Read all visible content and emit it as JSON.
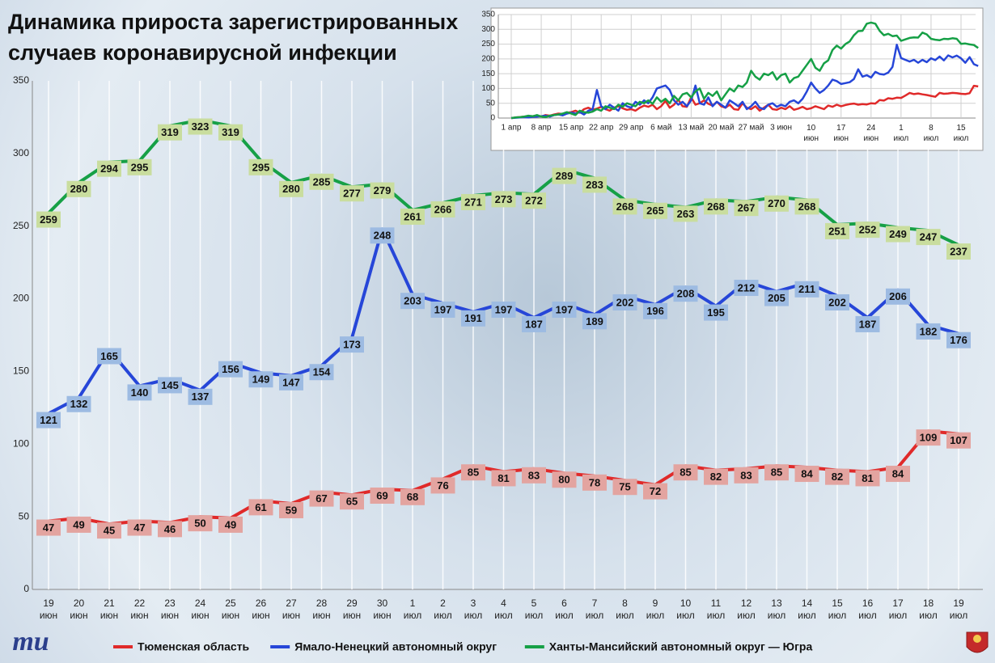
{
  "chart_data": [
    {
      "type": "line",
      "title": "Динамика прироста зарегистрированных случаев коронавирусной инфекции",
      "logo": "mu",
      "categories": [
        "19 июн",
        "20 июн",
        "21 июн",
        "22 июн",
        "23 июн",
        "24 июн",
        "25 июн",
        "26 июн",
        "27 июн",
        "28 июн",
        "29 июн",
        "30 июн",
        "1 июл",
        "2 июл",
        "3 июл",
        "4 июл",
        "5 июл",
        "6 июл",
        "7 июл",
        "8 июл",
        "9 июл",
        "10 июл",
        "11 июл",
        "12 июл",
        "13 июл",
        "14 июл",
        "15 июл",
        "16 июл",
        "17 июл",
        "18 июл",
        "19 июл"
      ],
      "ylim": [
        0,
        350
      ],
      "yticks": [
        0,
        50,
        100,
        150,
        200,
        250,
        300,
        350
      ],
      "grid": "x",
      "data_labels": true,
      "legend": "bottom",
      "series": [
        {
          "name": "Тюменская область",
          "color": "#e02a2a",
          "label_color": "#e3a4a0",
          "values": [
            47,
            49,
            45,
            47,
            46,
            50,
            49,
            61,
            59,
            67,
            65,
            69,
            68,
            76,
            85,
            81,
            83,
            80,
            78,
            75,
            72,
            85,
            82,
            83,
            85,
            84,
            82,
            81,
            84,
            109,
            107
          ]
        },
        {
          "name": "Ямало-Ненецкий автономный округ",
          "color": "#2646d8",
          "label_color": "#9dbbe2",
          "values": [
            121,
            132,
            165,
            140,
            145,
            137,
            156,
            149,
            147,
            154,
            173,
            248,
            203,
            197,
            191,
            197,
            187,
            197,
            189,
            202,
            196,
            208,
            195,
            212,
            205,
            211,
            202,
            187,
            206,
            182,
            176
          ]
        },
        {
          "name": "Ханты-Мансийский автономный округ — Югра",
          "color": "#16a046",
          "label_color": "#c9dd9e",
          "values": [
            259,
            280,
            294,
            295,
            319,
            323,
            319,
            295,
            280,
            285,
            277,
            279,
            261,
            266,
            271,
            273,
            272,
            289,
            283,
            268,
            265,
            263,
            268,
            267,
            270,
            268,
            251,
            252,
            249,
            247,
            237
          ]
        }
      ]
    },
    {
      "type": "line",
      "categories": [
        "1 апр",
        null,
        null,
        null,
        null,
        null,
        null,
        "8 апр",
        null,
        null,
        null,
        null,
        null,
        null,
        "15 апр",
        null,
        null,
        null,
        null,
        null,
        null,
        "22 апр",
        null,
        null,
        null,
        null,
        null,
        null,
        "29 апр",
        null,
        null,
        null,
        null,
        null,
        null,
        "6 май",
        null,
        null,
        null,
        null,
        null,
        null,
        "13 май",
        null,
        null,
        null,
        null,
        null,
        null,
        "20 май",
        null,
        null,
        null,
        null,
        null,
        null,
        "27 май",
        null,
        null,
        null,
        null,
        null,
        null,
        "3 июн",
        null,
        null,
        null,
        null,
        null,
        null,
        "10 июн",
        null,
        null,
        null,
        null,
        null,
        null,
        "17 июн",
        null,
        null,
        null,
        null,
        null,
        null,
        "24 июн",
        null,
        null,
        null,
        null,
        null,
        null,
        "1 июл",
        null,
        null,
        null,
        null,
        null,
        null,
        "8 июл",
        null,
        null,
        null,
        null,
        null,
        null,
        "15 июл",
        null,
        null,
        null,
        null
      ],
      "ylim": [
        0,
        350
      ],
      "yticks": [
        0,
        50,
        100,
        150,
        200,
        250,
        300,
        350
      ],
      "grid": "both",
      "data_labels": false,
      "series": [
        {
          "color": "#e02a2a",
          "values": [
            0,
            2,
            3,
            5,
            4,
            6,
            8,
            5,
            10,
            8,
            12,
            15,
            14,
            18,
            20,
            25,
            18,
            30,
            35,
            28,
            32,
            38,
            30,
            25,
            35,
            40,
            33,
            28,
            30,
            25,
            35,
            42,
            38,
            45,
            30,
            40,
            58,
            35,
            45,
            62,
            40,
            38,
            70,
            45,
            50,
            60,
            48,
            42,
            55,
            40,
            35,
            45,
            30,
            28,
            50,
            35,
            30,
            40,
            25,
            35,
            45,
            30,
            28,
            35,
            30,
            40,
            28,
            32,
            38,
            30,
            33,
            40,
            35,
            30,
            42,
            38,
            45,
            40,
            44,
            47,
            49,
            45,
            47,
            46,
            50,
            49,
            61,
            59,
            67,
            65,
            69,
            68,
            76,
            85,
            81,
            83,
            80,
            78,
            75,
            72,
            85,
            82,
            83,
            85,
            84,
            82,
            81,
            84,
            109,
            107
          ]
        },
        {
          "color": "#2646d8",
          "values": [
            0,
            1,
            2,
            3,
            2,
            4,
            5,
            6,
            8,
            5,
            10,
            12,
            9,
            15,
            18,
            15,
            20,
            12,
            25,
            30,
            95,
            40,
            30,
            45,
            35,
            25,
            50,
            40,
            35,
            55,
            45,
            60,
            50,
            70,
            100,
            105,
            110,
            95,
            60,
            45,
            55,
            40,
            60,
            110,
            50,
            45,
            70,
            40,
            55,
            45,
            35,
            60,
            50,
            40,
            55,
            30,
            40,
            55,
            35,
            30,
            45,
            50,
            38,
            45,
            40,
            55,
            60,
            50,
            65,
            90,
            120,
            100,
            85,
            95,
            110,
            130,
            125,
            115,
            118,
            121,
            132,
            165,
            140,
            145,
            137,
            156,
            149,
            147,
            154,
            173,
            248,
            203,
            197,
            191,
            197,
            187,
            197,
            189,
            202,
            196,
            208,
            195,
            212,
            205,
            211,
            202,
            187,
            206,
            182,
            176
          ]
        },
        {
          "color": "#16a046",
          "values": [
            0,
            2,
            3,
            5,
            8,
            6,
            10,
            5,
            3,
            8,
            10,
            12,
            15,
            20,
            15,
            10,
            25,
            20,
            18,
            22,
            30,
            25,
            40,
            35,
            30,
            45,
            38,
            50,
            45,
            40,
            55,
            50,
            60,
            48,
            70,
            55,
            65,
            50,
            75,
            60,
            80,
            85,
            70,
            90,
            100,
            65,
            85,
            75,
            90,
            60,
            80,
            100,
            90,
            110,
            105,
            120,
            160,
            140,
            130,
            150,
            145,
            155,
            130,
            145,
            150,
            120,
            135,
            140,
            160,
            180,
            200,
            170,
            160,
            185,
            195,
            230,
            245,
            235,
            250,
            259,
            280,
            294,
            295,
            319,
            323,
            319,
            295,
            280,
            285,
            277,
            279,
            261,
            266,
            271,
            273,
            272,
            289,
            283,
            268,
            265,
            263,
            268,
            267,
            270,
            268,
            251,
            252,
            249,
            247,
            237
          ]
        }
      ]
    }
  ]
}
